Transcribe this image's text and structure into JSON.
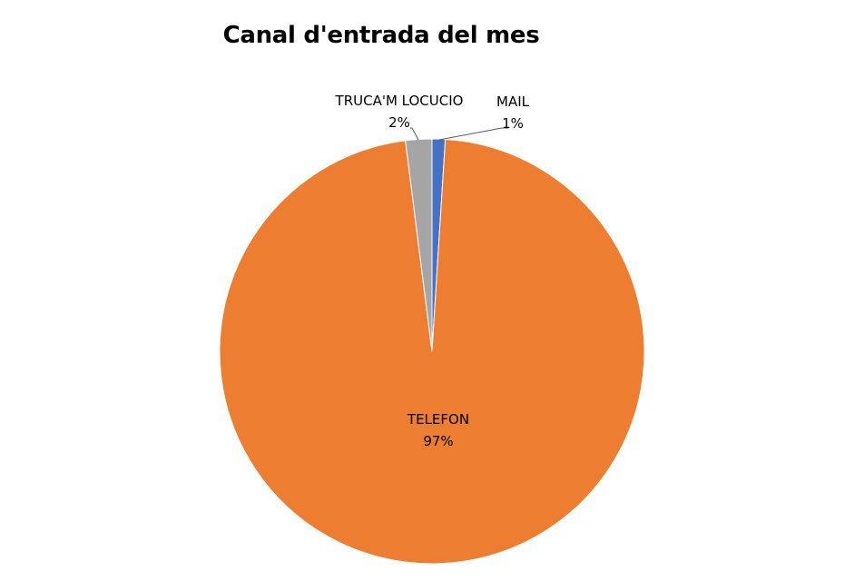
{
  "chart_data": {
    "type": "pie",
    "title": "Canal d'entrada del mes",
    "slices": [
      {
        "label": "MAIL",
        "value": 1,
        "pct_label": "1%",
        "color": "#4472C4"
      },
      {
        "label": "TELEFON",
        "value": 97,
        "pct_label": "97%",
        "color": "#ED7D31"
      },
      {
        "label": "TRUCA'M LOCUCIO",
        "value": 2,
        "pct_label": "2%",
        "color": "#A5A5A5"
      }
    ],
    "legend": "none",
    "data_labels": "category and percentage"
  }
}
